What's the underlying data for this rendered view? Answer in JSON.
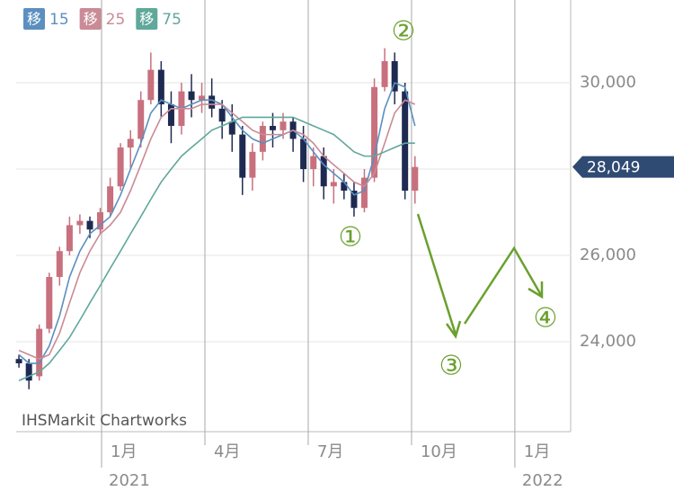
{
  "chart_data": {
    "type": "candlestick",
    "legend_prefix": "移",
    "x": [
      -2.4,
      -2.11,
      -1.81,
      -1.52,
      -1.22,
      -0.93,
      -0.63,
      -0.34,
      -0.04,
      0.25,
      0.55,
      0.84,
      1.14,
      1.43,
      1.73,
      2.02,
      2.32,
      2.61,
      2.91,
      3.2,
      3.5,
      3.79,
      4.09,
      4.38,
      4.68,
      4.97,
      5.27,
      5.56,
      5.86,
      6.15,
      6.45,
      6.74,
      7.04,
      7.33,
      7.63,
      7.92,
      8.22,
      8.51,
      8.81,
      9.1
    ],
    "open": [
      23600,
      23500,
      23200,
      24300,
      25500,
      26100,
      26700,
      26800,
      26600,
      27000,
      27600,
      28500,
      28700,
      29600,
      30300,
      29500,
      29000,
      29800,
      29600,
      29700,
      29400,
      29100,
      28800,
      27800,
      28400,
      29000,
      28900,
      29100,
      28700,
      28000,
      28300,
      27600,
      27700,
      27500,
      27100,
      27800,
      29900,
      30500,
      29800,
      27500
    ],
    "high": [
      23700,
      23600,
      24400,
      25600,
      26200,
      26900,
      26950,
      26900,
      27100,
      27800,
      28600,
      28900,
      29800,
      30700,
      30500,
      29800,
      30000,
      30200,
      30000,
      30100,
      29600,
      29500,
      29000,
      28600,
      29100,
      29300,
      29300,
      29200,
      29000,
      28500,
      28500,
      28000,
      27900,
      27700,
      28000,
      30100,
      30800,
      30700,
      30000,
      28300
    ],
    "low": [
      23400,
      22900,
      23100,
      24200,
      25300,
      26000,
      26500,
      26400,
      26500,
      26900,
      27500,
      28000,
      28500,
      29500,
      29200,
      28600,
      28800,
      29200,
      29300,
      29200,
      28700,
      28400,
      27400,
      27500,
      28200,
      28500,
      28700,
      28400,
      27700,
      27600,
      27300,
      27200,
      27300,
      26900,
      27000,
      27700,
      29800,
      29500,
      27300,
      27200
    ],
    "close": [
      23500,
      23100,
      24300,
      25500,
      26100,
      26700,
      26800,
      26600,
      27000,
      27600,
      28500,
      28700,
      29600,
      30300,
      29500,
      29000,
      29800,
      29600,
      29700,
      29400,
      29100,
      28800,
      27800,
      28400,
      29000,
      28900,
      29100,
      28700,
      28000,
      28300,
      27600,
      27700,
      27500,
      27100,
      27800,
      29900,
      30500,
      29800,
      27500,
      28049
    ],
    "up_color": "#c8707e",
    "down_color": "#1f2a52",
    "series": [
      {
        "name": "15",
        "color": "#5b8fbf",
        "values": [
          23700,
          23500,
          23500,
          23900,
          24600,
          25500,
          26100,
          26500,
          26700,
          26900,
          27400,
          28000,
          28600,
          29300,
          29600,
          29500,
          29400,
          29500,
          29600,
          29600,
          29500,
          29200,
          28900,
          28700,
          28600,
          28700,
          28800,
          28900,
          28700,
          28400,
          28100,
          27900,
          27700,
          27400,
          27500,
          28300,
          29400,
          30000,
          29900,
          29000
        ]
      },
      {
        "name": "25",
        "color": "#c98b96",
        "values": [
          23800,
          23700,
          23600,
          23700,
          24200,
          24900,
          25600,
          26100,
          26500,
          26700,
          27000,
          27500,
          28100,
          28700,
          29200,
          29400,
          29400,
          29400,
          29500,
          29500,
          29500,
          29300,
          29100,
          28900,
          28800,
          28800,
          28800,
          28900,
          28800,
          28600,
          28300,
          28100,
          27900,
          27700,
          27600,
          27900,
          28600,
          29300,
          29600,
          29500
        ]
      },
      {
        "name": "75",
        "color": "#5fa89b",
        "values": [
          23100,
          23200,
          23300,
          23500,
          23800,
          24100,
          24500,
          24900,
          25300,
          25700,
          26100,
          26500,
          26900,
          27300,
          27700,
          28000,
          28300,
          28500,
          28700,
          28900,
          29000,
          29100,
          29200,
          29200,
          29200,
          29200,
          29200,
          29200,
          29100,
          29000,
          28900,
          28800,
          28600,
          28400,
          28300,
          28300,
          28400,
          28500,
          28600,
          28600
        ]
      }
    ],
    "xlim": [
      -2.48,
      13.62
    ],
    "xticks": [
      {
        "value": 0,
        "label": "1月"
      },
      {
        "value": 3,
        "label": "4月"
      },
      {
        "value": 6,
        "label": "7月"
      },
      {
        "value": 9,
        "label": "10月"
      },
      {
        "value": 12,
        "label": "1月"
      }
    ],
    "year_labels": [
      {
        "value": 0,
        "label": "2021"
      },
      {
        "value": 12,
        "label": "2022"
      }
    ],
    "ylim": [
      21917,
      31917
    ],
    "yticks": [
      {
        "value": 24000,
        "label": "24,000"
      },
      {
        "value": 26000,
        "label": "26,000"
      },
      {
        "value": 28000
      },
      {
        "value": 30000,
        "label": "30,000"
      }
    ],
    "last_price": {
      "value": 28049,
      "label": "28,049"
    },
    "watermark": "IHSMarkit Chartworks",
    "annotations": [
      "①",
      "②",
      "③",
      "④"
    ]
  }
}
